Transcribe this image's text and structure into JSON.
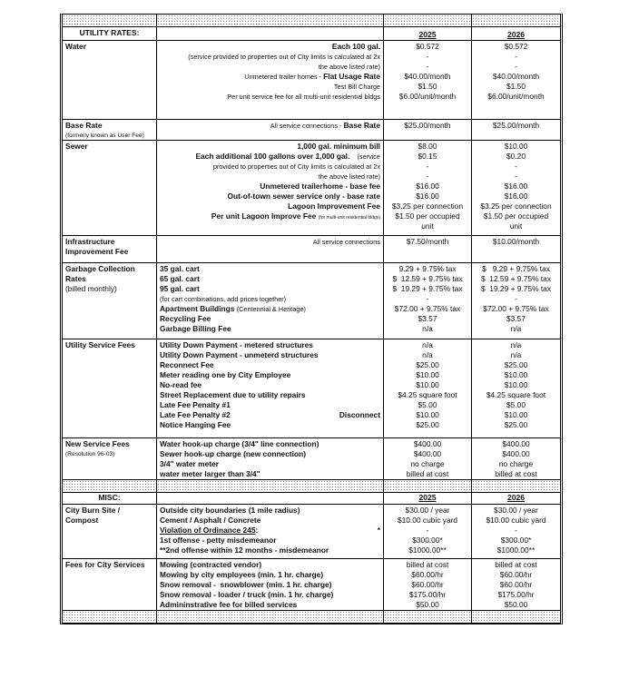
{
  "utility_header": {
    "title": "UTILITY RATES:",
    "year1": "2025",
    "year2": "2026"
  },
  "misc_header": {
    "title": "MISC:",
    "year1": "2025",
    "year2": "2026"
  },
  "utility_sections": [
    {
      "label": [
        {
          "text": "Water",
          "bold": true
        }
      ],
      "align": "right",
      "lines": [
        {
          "parts": [
            {
              "t": "Each 100 gal.",
              "b": true
            }
          ]
        },
        {
          "parts": [
            {
              "t": "(service provided to properties out of City limits is calculated at 2x",
              "s": "sm"
            }
          ]
        },
        {
          "parts": [
            {
              "t": "the above listed rate)",
              "s": "sm"
            }
          ]
        },
        {
          "parts": [
            {
              "t": "Unmetered trailer homes - ",
              "s": "sm"
            },
            {
              "t": "Flat Usage Rate",
              "b": true
            }
          ]
        },
        {
          "parts": [
            {
              "t": "Test Bill Charge",
              "s": "sm"
            }
          ]
        },
        {
          "parts": [
            {
              "t": "Per unit service fee for all multi-unit residential bldgs",
              "s": "sm"
            }
          ]
        }
      ],
      "y2025": [
        "$0.572",
        "-",
        "-",
        "$40.00/month",
        "$1.50",
        "$6.00/unit/month"
      ],
      "y2026": [
        "$0.572",
        "-",
        "-",
        "$40.00/month",
        "$1.50",
        "$6.00/unit/month"
      ]
    },
    {
      "label": [
        {
          "text": "Base Rate",
          "bold": true
        },
        {
          "text": "(formerly known as User Fee)",
          "small": true
        }
      ],
      "align": "right",
      "lines": [
        {
          "parts": [
            {
              "t": "All service connections - ",
              "s": "sm"
            },
            {
              "t": "Base Rate",
              "b": true
            }
          ]
        }
      ],
      "y2025": [
        "$25.00/month"
      ],
      "y2026": [
        "$25.00/month"
      ]
    },
    {
      "label": [
        {
          "text": "Sewer",
          "bold": true
        }
      ],
      "align": "right",
      "lines": [
        {
          "parts": [
            {
              "t": "1,000 gal. minimum bill",
              "b": true
            }
          ]
        },
        {
          "parts": [
            {
              "t": "Each additional 100 gallons over 1,000 gal.",
              "b": true
            },
            {
              "t": "    (service",
              "s": "sm"
            }
          ]
        },
        {
          "parts": [
            {
              "t": "provided to properties out of City limits is calculated at 2x",
              "s": "sm"
            }
          ]
        },
        {
          "parts": [
            {
              "t": "the above listed rate)",
              "s": "sm"
            }
          ]
        },
        {
          "parts": [
            {
              "t": "Unmetered trailerhome - base fee",
              "b": true
            }
          ]
        },
        {
          "parts": [
            {
              "t": "Out-of-town sewer service only - base rate",
              "b": true
            }
          ]
        },
        {
          "parts": [
            {
              "t": "Lagoon Improvement Fee",
              "b": true
            }
          ]
        },
        {
          "parts": [
            {
              "t": "Per unit Lagoon Improve Fee ",
              "b": true
            },
            {
              "t": "(for multi-unit residential bldgs)",
              "s": "tiny"
            }
          ]
        }
      ],
      "y2025": [
        "$8.00",
        "$0.15",
        "-",
        "-",
        "$16.00",
        "$16.00",
        "$3.25 per connection",
        "$1.50 per occupied",
        "unit"
      ],
      "y2026": [
        "$10.00",
        "$0.20",
        "-",
        "-",
        "$16.00",
        "$16.00",
        "$3.25 per connection",
        "$1.50 per occupied",
        "unit"
      ]
    },
    {
      "label": [
        {
          "text": "Infrastructure",
          "bold": true
        },
        {
          "text": "Improvement Fee",
          "bold": true
        }
      ],
      "align": "right",
      "lines": [
        {
          "parts": [
            {
              "t": "All service connections",
              "s": "sm"
            }
          ]
        }
      ],
      "y2025": [
        "$7.50/month"
      ],
      "y2026": [
        "$10.00/month"
      ]
    },
    {
      "label": [
        {
          "text": "Garbage Collection",
          "bold": true
        },
        {
          "text": "Rates",
          "bold": true
        },
        {
          "text": "(billed monthly)"
        }
      ],
      "align": "left",
      "lines": [
        {
          "parts": [
            {
              "t": "35 gal. cart",
              "b": true
            }
          ]
        },
        {
          "parts": [
            {
              "t": "65 gal. cart",
              "b": true
            }
          ]
        },
        {
          "parts": [
            {
              "t": "95 gal. cart",
              "b": true
            }
          ]
        },
        {
          "parts": [
            {
              "t": "(for cart combinations, add prices together)",
              "s": "sm"
            }
          ]
        },
        {
          "parts": [
            {
              "t": "Apartment Buildings ",
              "b": true
            },
            {
              "t": "(Centennial & Heritage)",
              "s": "sm"
            }
          ]
        },
        {
          "parts": [
            {
              "t": "Recycling Fee",
              "b": true
            }
          ]
        },
        {
          "parts": [
            {
              "t": "Garbage Billing Fee",
              "b": true
            }
          ]
        }
      ],
      "y2025": [
        "9.29 + 9.75% tax",
        "$  12.59 + 9.75% tax",
        "$  19.29 + 9.75% tax",
        "-",
        "$72.00 + 9.75% tax",
        "$3.57",
        "n/a"
      ],
      "y2026": [
        "$   9.29 + 9.75% tax",
        "$  12.59 + 9.75% tax",
        "$  19.29 + 9.75% tax",
        "-",
        "$72.00 + 9.75% tax",
        "$3.57",
        "n/a"
      ]
    },
    {
      "label": [
        {
          "text": "Utility Service Fees",
          "bold": true
        }
      ],
      "align": "left",
      "lines": [
        {
          "parts": [
            {
              "t": "Utility Down Payment - metered structures",
              "b": true
            }
          ]
        },
        {
          "parts": [
            {
              "t": "Utility Down Payment - unmeterd structures",
              "b": true
            }
          ]
        },
        {
          "parts": [
            {
              "t": "Reconnect Fee",
              "b": true
            }
          ]
        },
        {
          "parts": [
            {
              "t": "Meter reading one by City Employee",
              "b": true
            }
          ]
        },
        {
          "parts": [
            {
              "t": "No-read fee",
              "b": true
            }
          ]
        },
        {
          "parts": [
            {
              "t": "Street Replacement due to utility repairs",
              "b": true
            }
          ]
        },
        {
          "parts": [
            {
              "t": "Late Fee Penalty #1",
              "b": true
            }
          ]
        },
        {
          "parts": [
            {
              "t": "Late Fee Penalty #2",
              "b": true
            }
          ],
          "right": "Disconnect"
        },
        {
          "parts": [
            {
              "t": "Notice Hanging Fee",
              "b": true
            }
          ]
        }
      ],
      "y2025": [
        "n/a",
        "n/a",
        "$25.00",
        "$10.00",
        "$10.00",
        "$4.25 square foot",
        "$5.00",
        "$10.00",
        "$25.00"
      ],
      "y2026": [
        "n/a",
        "n/a",
        "$25.00",
        "$10.00",
        "$10.00",
        "$4.25 square foot",
        "$5.00",
        "$10.00",
        "$25.00"
      ]
    },
    {
      "label": [
        {
          "text": "New Service Fees",
          "bold": true
        },
        {
          "text": "(Resolution 96-03)",
          "small": true
        }
      ],
      "align": "left",
      "lines": [
        {
          "parts": [
            {
              "t": "Water hook-up charge (3/4\" line connection)",
              "b": true
            }
          ]
        },
        {
          "parts": [
            {
              "t": "Sewer hook-up charge (new connection)",
              "b": true
            }
          ]
        },
        {
          "parts": [
            {
              "t": "3/4\" water meter",
              "b": true
            }
          ]
        },
        {
          "parts": [
            {
              "t": "water meter larger than 3/4\"",
              "b": true
            }
          ]
        }
      ],
      "y2025": [
        "$400.00",
        "$400.00",
        "no charge",
        "billed at cost"
      ],
      "y2026": [
        "$400.00",
        "$400.00",
        "no charge",
        "billed at cost"
      ]
    }
  ],
  "misc_sections": [
    {
      "label": [
        {
          "text": "City Burn Site /",
          "bold": true
        },
        {
          "text": "Compost",
          "bold": true
        }
      ],
      "align": "left",
      "lines": [
        {
          "parts": [
            {
              "t": "Outside city boundaries (1 mile radius)",
              "b": true
            }
          ]
        },
        {
          "parts": [
            {
              "t": "Cement / Asphalt / Concrete",
              "b": true
            }
          ]
        },
        {
          "parts": [
            {
              "t": "Violation of Ordinance 245",
              "b": true,
              "u": true
            },
            {
              "t": ":",
              "b": true
            }
          ],
          "right": "*"
        },
        {
          "parts": [
            {
              "t": "1st offense - petty misdemeanor",
              "b": true
            }
          ]
        },
        {
          "parts": [
            {
              "t": "**2nd offense within 12 months - misdemeanor",
              "b": true
            }
          ]
        }
      ],
      "y2025": [
        "$30.00 / year",
        "$10.00 cubic yard",
        "-",
        "$300.00*",
        "$1000.00**"
      ],
      "y2026": [
        "$30.00 / year",
        "$10.00 cubic yard",
        "-",
        "$300.00*",
        "$1000.00**"
      ]
    },
    {
      "label": [
        {
          "text": "Fees for City Services",
          "bold": true
        }
      ],
      "align": "left",
      "lines": [
        {
          "parts": [
            {
              "t": "Mowing (contracted vendor)",
              "b": true
            }
          ]
        },
        {
          "parts": [
            {
              "t": "Mowing by city employees (min. 1 hr. charge)",
              "b": true
            }
          ]
        },
        {
          "parts": [
            {
              "t": "Snow removal -  snowblower (min. 1 hr. charge)",
              "b": true
            }
          ]
        },
        {
          "parts": [
            {
              "t": "Snow removal - loader / truck (min. 1 hr. charge)",
              "b": true
            }
          ]
        },
        {
          "parts": [
            {
              "t": "Admininstrative fee for billed services",
              "b": true
            }
          ]
        }
      ],
      "y2025": [
        "billed at cost",
        "$60.00/hr",
        "$60.00/hr",
        "$175.00/hr",
        "$50.00"
      ],
      "y2026": [
        "billed at cost",
        "$60.00/hr",
        "$60.00/hr",
        "$175.00/hr",
        "$50.00"
      ]
    }
  ]
}
